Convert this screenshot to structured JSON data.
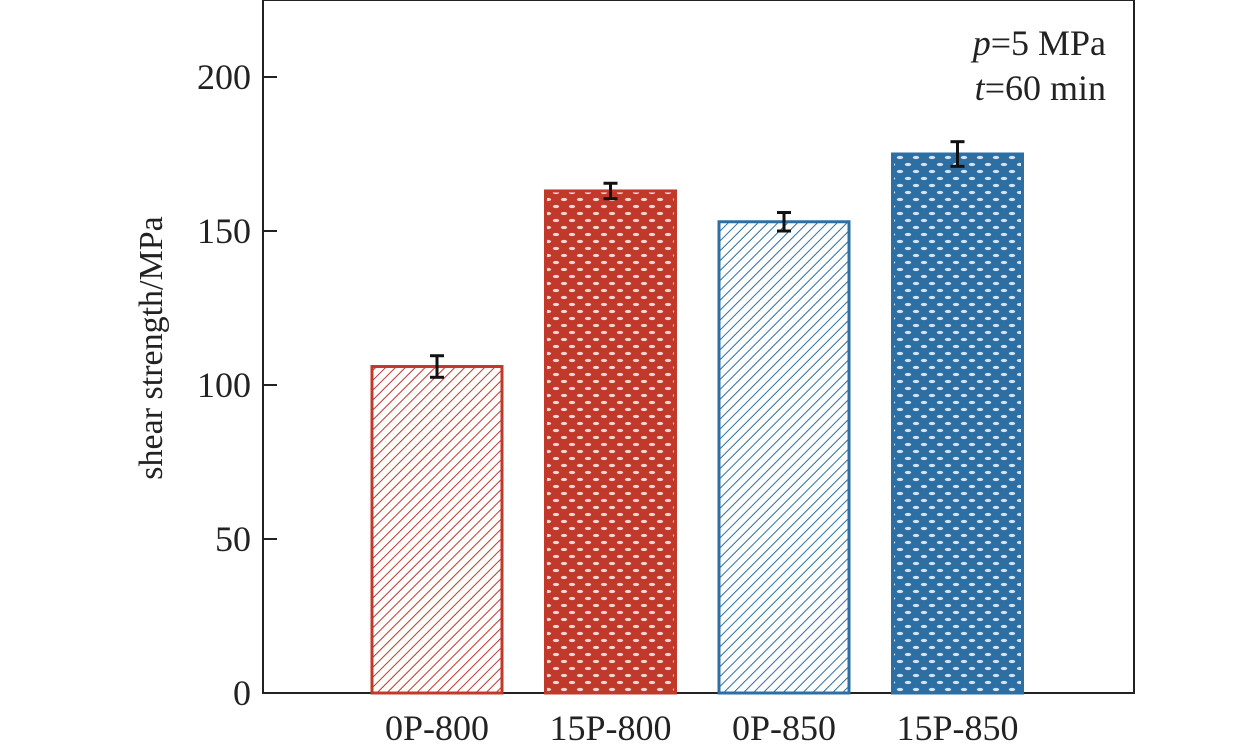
{
  "chart_data": {
    "type": "bar",
    "title": "",
    "xlabel": "",
    "ylabel": "shear strength/MPa",
    "ylim": [
      0,
      225
    ],
    "yticks": [
      0,
      50,
      100,
      150,
      200
    ],
    "grid": false,
    "categories": [
      "0P-800",
      "15P-800",
      "0P-850",
      "15P-850"
    ],
    "values": [
      106,
      163,
      153,
      175
    ],
    "errors": [
      3.5,
      2.5,
      3.0,
      4.0
    ],
    "colors": [
      "#c0392b",
      "#c0392b",
      "#2e6fa3",
      "#2e6fa3"
    ],
    "fill_patterns": [
      "diagonal-hatch",
      "dots",
      "diagonal-hatch",
      "dots"
    ],
    "annotations": [
      {
        "var": "p",
        "text": "=5 MPa"
      },
      {
        "var": "t",
        "text": "=60 min"
      }
    ]
  }
}
